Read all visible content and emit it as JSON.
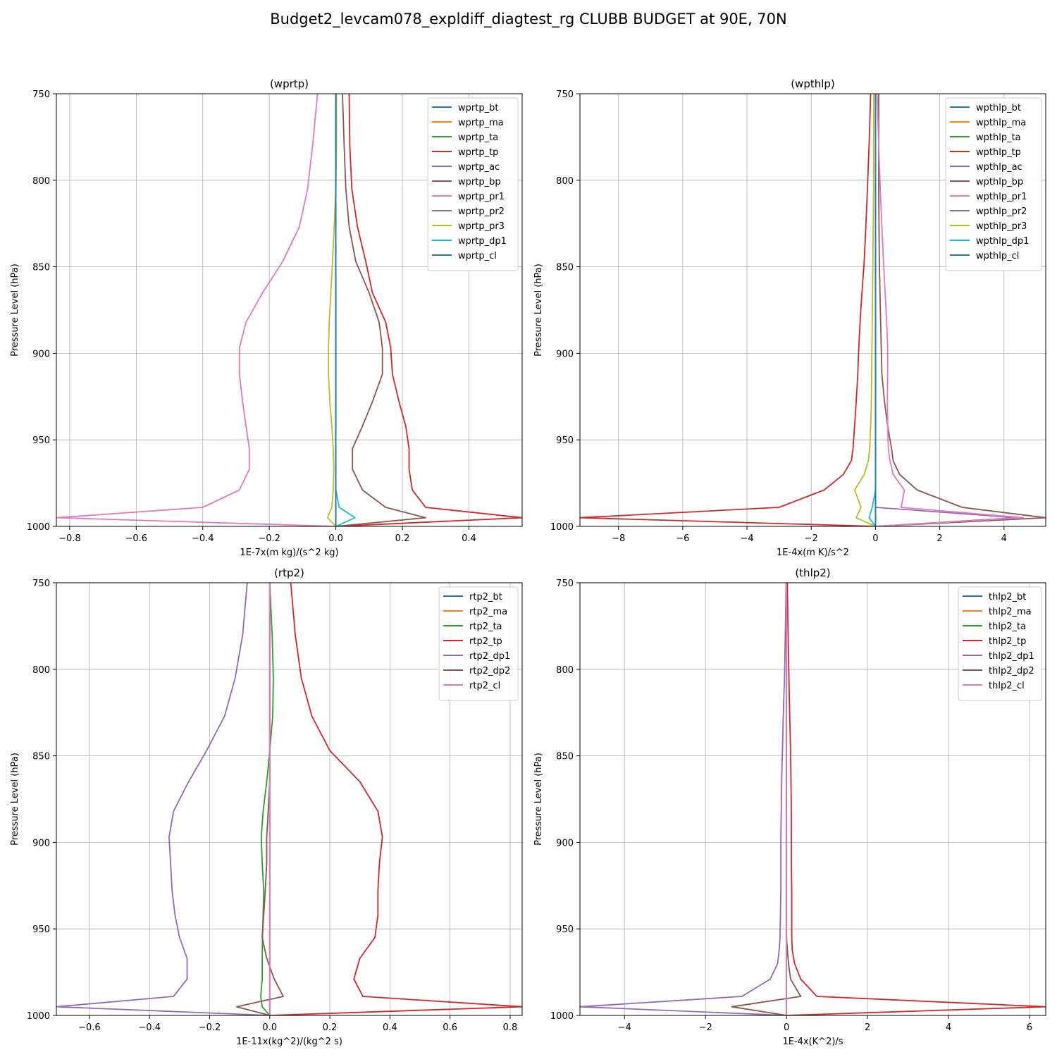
{
  "figure": {
    "title": "Budget2_levcam078_expldiff_diagtest_rg CLUBB BUDGET at 90E, 70N"
  },
  "chart_data": [
    {
      "type": "line",
      "title": "(wprtp)",
      "xlabel": "1E-7x(m kg)/(s^2 kg)",
      "ylabel": "Pressure Level (hPa)",
      "xlim": [
        -0.84,
        0.56
      ],
      "ylim": [
        1000,
        750
      ],
      "xticks": [
        "-0.8",
        "-0.6",
        "-0.4",
        "-0.2",
        "0.0",
        "0.2",
        "0.4"
      ],
      "xtick_values": [
        -0.8,
        -0.6,
        -0.4,
        -0.2,
        0.0,
        0.2,
        0.4
      ],
      "yticks": [
        "750",
        "800",
        "850",
        "900",
        "950",
        "1000"
      ],
      "ytick_values": [
        750,
        800,
        850,
        900,
        950,
        1000
      ],
      "grid": true,
      "legend_position": "top-right",
      "levels": [
        750,
        780,
        805,
        827,
        847,
        865,
        882,
        897,
        912,
        928,
        942,
        955,
        967,
        979,
        989,
        995,
        1000
      ],
      "series": [
        {
          "name": "wprtp_bt",
          "color": "#1f77b4",
          "values": [
            0,
            0,
            0,
            0,
            0,
            0,
            0,
            0,
            0,
            0,
            0,
            0,
            0,
            0,
            0,
            0,
            0
          ]
        },
        {
          "name": "wprtp_ma",
          "color": "#ff7f0e",
          "values": [
            0,
            0,
            0,
            0,
            0,
            0,
            0,
            0,
            0,
            0,
            0,
            0,
            0,
            0,
            0,
            0,
            0
          ]
        },
        {
          "name": "wprtp_ta",
          "color": "#2ca02c",
          "values": [
            0,
            0,
            0,
            0,
            0,
            0,
            0,
            0,
            0,
            0,
            0,
            0,
            0,
            0,
            0,
            0,
            0
          ]
        },
        {
          "name": "wprtp_tp",
          "color": "#d62728",
          "values": [
            0.04,
            0.042,
            0.048,
            0.065,
            0.09,
            0.11,
            0.15,
            0.165,
            0.17,
            0.19,
            0.21,
            0.22,
            0.22,
            0.23,
            0.27,
            0.56,
            0.0
          ]
        },
        {
          "name": "wprtp_ac",
          "color": "#9467bd",
          "values": [
            0,
            0,
            0,
            0,
            0,
            0,
            0,
            0,
            0,
            0,
            0,
            0,
            0,
            0,
            0,
            0,
            0
          ]
        },
        {
          "name": "wprtp_bp",
          "color": "#8c564b",
          "values": [
            0.02,
            0.025,
            0.03,
            0.04,
            0.06,
            0.1,
            0.13,
            0.14,
            0.14,
            0.11,
            0.08,
            0.05,
            0.05,
            0.08,
            0.15,
            0.27,
            0.0
          ]
        },
        {
          "name": "wprtp_pr1",
          "color": "#e377c2",
          "values": [
            -0.055,
            -0.07,
            -0.085,
            -0.11,
            -0.16,
            -0.22,
            -0.27,
            -0.29,
            -0.29,
            -0.28,
            -0.27,
            -0.26,
            -0.26,
            -0.29,
            -0.4,
            -0.84,
            0.0
          ]
        },
        {
          "name": "wprtp_pr2",
          "color": "#7f7f7f",
          "values": [
            0,
            0,
            0,
            0,
            0,
            0,
            0,
            0,
            0,
            0,
            0,
            0,
            0,
            0,
            0,
            0,
            0
          ]
        },
        {
          "name": "wprtp_pr3",
          "color": "#bcbd22",
          "values": [
            0.002,
            0.002,
            0.0,
            -0.005,
            -0.01,
            -0.015,
            -0.02,
            -0.022,
            -0.022,
            -0.018,
            -0.012,
            -0.008,
            -0.006,
            -0.008,
            -0.012,
            -0.025,
            0.0
          ]
        },
        {
          "name": "wprtp_dp1",
          "color": "#17becf",
          "values": [
            0,
            0,
            0,
            0,
            0,
            0,
            0,
            0,
            0,
            0,
            0,
            0,
            0,
            0,
            0.01,
            0.058,
            0.0
          ]
        },
        {
          "name": "wprtp_cl",
          "color": "#1f77b4",
          "values": [
            0,
            0,
            0,
            0,
            0,
            0,
            0,
            0,
            0,
            0,
            0,
            0,
            0,
            0,
            0,
            0,
            0
          ]
        }
      ]
    },
    {
      "type": "line",
      "title": "(wpthlp)",
      "xlabel": "1E-4x(m K)/s^2",
      "ylabel": "Pressure Level (hPa)",
      "xlim": [
        -9.2,
        5.3
      ],
      "ylim": [
        1000,
        750
      ],
      "xticks": [
        "-8",
        "-6",
        "-4",
        "-2",
        "0",
        "2",
        "4"
      ],
      "xtick_values": [
        -8,
        -6,
        -4,
        -2,
        0,
        2,
        4
      ],
      "yticks": [
        "750",
        "800",
        "850",
        "900",
        "950",
        "1000"
      ],
      "ytick_values": [
        750,
        800,
        850,
        900,
        950,
        1000
      ],
      "grid": true,
      "legend_position": "top-right",
      "levels": [
        750,
        780,
        805,
        827,
        847,
        865,
        882,
        897,
        912,
        928,
        942,
        955,
        962,
        970,
        979,
        989,
        995,
        1000
      ],
      "series": [
        {
          "name": "wpthlp_bt",
          "color": "#1f77b4",
          "values": [
            0,
            0,
            0,
            0,
            0,
            0,
            0,
            0,
            0,
            0,
            0,
            0,
            0,
            0,
            0,
            0,
            0,
            0
          ]
        },
        {
          "name": "wpthlp_ma",
          "color": "#ff7f0e",
          "values": [
            0,
            0,
            0,
            0,
            0,
            0,
            0,
            0,
            0,
            0,
            0,
            0,
            0,
            0,
            0,
            0,
            0,
            0
          ]
        },
        {
          "name": "wpthlp_ta",
          "color": "#2ca02c",
          "values": [
            0,
            0,
            0,
            0,
            0,
            0,
            0,
            0,
            0,
            0,
            0,
            0,
            0,
            0,
            0,
            0,
            0,
            0
          ]
        },
        {
          "name": "wpthlp_tp",
          "color": "#d62728",
          "values": [
            -0.15,
            -0.2,
            -0.25,
            -0.3,
            -0.35,
            -0.42,
            -0.48,
            -0.52,
            -0.55,
            -0.6,
            -0.65,
            -0.7,
            -0.75,
            -1.0,
            -1.6,
            -3.0,
            -9.2,
            0.0
          ]
        },
        {
          "name": "wpthlp_ac",
          "color": "#9467bd",
          "values": [
            0,
            0,
            0,
            0,
            0,
            0,
            0,
            0,
            0,
            0,
            0,
            0,
            0,
            0,
            0,
            0,
            4.4,
            0.0
          ]
        },
        {
          "name": "wpthlp_bp",
          "color": "#8c564b",
          "values": [
            0.1,
            0.1,
            0.1,
            0.11,
            0.12,
            0.14,
            0.16,
            0.18,
            0.2,
            0.28,
            0.38,
            0.5,
            0.55,
            0.75,
            1.3,
            2.7,
            5.3,
            0.0
          ]
        },
        {
          "name": "wpthlp_pr1",
          "color": "#e377c2",
          "values": [
            0.05,
            0.1,
            0.15,
            0.2,
            0.25,
            0.3,
            0.35,
            0.38,
            0.38,
            0.37,
            0.38,
            0.4,
            0.45,
            0.55,
            0.9,
            0.8,
            4.6,
            0.0
          ]
        },
        {
          "name": "wpthlp_pr2",
          "color": "#7f7f7f",
          "values": [
            0,
            0,
            0,
            0,
            0,
            0,
            0,
            0,
            0,
            0,
            0,
            0,
            0,
            0,
            0,
            0,
            0,
            0
          ]
        },
        {
          "name": "wpthlp_pr3",
          "color": "#bcbd22",
          "values": [
            -0.05,
            -0.06,
            -0.06,
            -0.07,
            -0.08,
            -0.09,
            -0.1,
            -0.11,
            -0.12,
            -0.13,
            -0.15,
            -0.18,
            -0.22,
            -0.35,
            -0.65,
            -0.45,
            -0.6,
            0.0
          ]
        },
        {
          "name": "wpthlp_dp1",
          "color": "#17becf",
          "values": [
            0,
            0,
            0,
            0,
            0,
            0,
            0,
            0,
            0,
            0,
            0,
            0,
            0,
            0,
            0,
            -0.1,
            -0.2,
            0.0
          ]
        },
        {
          "name": "wpthlp_cl",
          "color": "#1f77b4",
          "values": [
            0,
            0,
            0,
            0,
            0,
            0,
            0,
            0,
            0,
            0,
            0,
            0,
            0,
            0,
            0,
            0,
            0,
            0
          ]
        }
      ]
    },
    {
      "type": "line",
      "title": "(rtp2)",
      "xlabel": "1E-11x(kg^2)/(kg^2 s)",
      "ylabel": "Pressure Level (hPa)",
      "xlim": [
        -0.71,
        0.84
      ],
      "ylim": [
        1000,
        750
      ],
      "xticks": [
        "-0.6",
        "-0.4",
        "-0.2",
        "0.0",
        "0.2",
        "0.4",
        "0.6",
        "0.8"
      ],
      "xtick_values": [
        -0.6,
        -0.4,
        -0.2,
        0.0,
        0.2,
        0.4,
        0.6,
        0.8
      ],
      "yticks": [
        "750",
        "800",
        "850",
        "900",
        "950",
        "1000"
      ],
      "ytick_values": [
        750,
        800,
        850,
        900,
        950,
        1000
      ],
      "grid": true,
      "legend_position": "top-right",
      "levels": [
        750,
        780,
        805,
        827,
        847,
        865,
        882,
        897,
        912,
        928,
        942,
        955,
        967,
        979,
        989,
        995,
        1000
      ],
      "series": [
        {
          "name": "rtp2_bt",
          "color": "#1f77b4",
          "values": [
            0,
            0,
            0,
            0,
            0,
            0,
            0,
            0,
            0,
            0,
            0,
            0,
            0,
            0,
            0,
            0,
            0
          ]
        },
        {
          "name": "rtp2_ma",
          "color": "#ff7f0e",
          "values": [
            0,
            0,
            0,
            0,
            0,
            0,
            0,
            0,
            0,
            0,
            0,
            0,
            0,
            0,
            0,
            0,
            0
          ]
        },
        {
          "name": "rtp2_ta",
          "color": "#2ca02c",
          "values": [
            0.0,
            0.008,
            0.012,
            0.01,
            0.0,
            -0.01,
            -0.022,
            -0.028,
            -0.025,
            -0.02,
            -0.022,
            -0.024,
            -0.025,
            -0.025,
            -0.03,
            -0.025,
            0.0
          ]
        },
        {
          "name": "rtp2_tp",
          "color": "#d62728",
          "values": [
            0.07,
            0.085,
            0.105,
            0.14,
            0.2,
            0.3,
            0.36,
            0.375,
            0.365,
            0.36,
            0.36,
            0.35,
            0.3,
            0.28,
            0.31,
            0.84,
            0.0
          ]
        },
        {
          "name": "rtp2_dp1",
          "color": "#9467bd",
          "values": [
            -0.075,
            -0.09,
            -0.115,
            -0.15,
            -0.21,
            -0.27,
            -0.32,
            -0.335,
            -0.33,
            -0.325,
            -0.315,
            -0.3,
            -0.275,
            -0.275,
            -0.32,
            -0.71,
            0.0
          ]
        },
        {
          "name": "rtp2_dp2",
          "color": "#8c564b",
          "values": [
            0,
            0,
            0,
            0,
            0,
            0,
            -0.005,
            -0.01,
            -0.01,
            -0.015,
            -0.02,
            -0.025,
            -0.01,
            0.015,
            0.045,
            -0.11,
            0.0
          ]
        },
        {
          "name": "rtp2_cl",
          "color": "#e377c2",
          "values": [
            0,
            0,
            0,
            0,
            0,
            0,
            0,
            0,
            0,
            0,
            0,
            0,
            0,
            0,
            0,
            0,
            0
          ]
        }
      ]
    },
    {
      "type": "line",
      "title": "(thlp2)",
      "xlabel": "1E-4x(K^2)/s",
      "ylabel": "Pressure Level (hPa)",
      "xlim": [
        -5.1,
        6.4
      ],
      "ylim": [
        1000,
        750
      ],
      "xticks": [
        "-4",
        "-2",
        "0",
        "2",
        "4",
        "6"
      ],
      "xtick_values": [
        -4,
        -2,
        0,
        2,
        4,
        6
      ],
      "yticks": [
        "750",
        "800",
        "850",
        "900",
        "950",
        "1000"
      ],
      "ytick_values": [
        750,
        800,
        850,
        900,
        950,
        1000
      ],
      "grid": true,
      "legend_position": "top-right",
      "levels": [
        750,
        780,
        805,
        827,
        847,
        865,
        882,
        897,
        912,
        928,
        942,
        955,
        962,
        970,
        979,
        989,
        995,
        1000
      ],
      "series": [
        {
          "name": "thlp2_bt",
          "color": "#1f77b4",
          "values": [
            0,
            0,
            0,
            0,
            0,
            0,
            0,
            0,
            0,
            0,
            0,
            0,
            0,
            0,
            0,
            0,
            0,
            0
          ]
        },
        {
          "name": "thlp2_ma",
          "color": "#ff7f0e",
          "values": [
            0,
            0,
            0,
            0,
            0,
            0,
            0,
            0,
            0,
            0,
            0,
            0,
            0,
            0,
            0,
            0,
            0,
            0
          ]
        },
        {
          "name": "thlp2_ta",
          "color": "#2ca02c",
          "values": [
            0,
            0,
            0,
            0,
            0,
            0,
            0,
            0,
            0,
            0,
            0,
            0,
            0,
            0,
            0,
            0,
            0,
            0
          ]
        },
        {
          "name": "thlp2_tp",
          "color": "#d62728",
          "values": [
            0.02,
            0.04,
            0.06,
            0.08,
            0.1,
            0.11,
            0.12,
            0.12,
            0.12,
            0.13,
            0.13,
            0.13,
            0.14,
            0.2,
            0.35,
            0.75,
            6.4,
            0.0
          ]
        },
        {
          "name": "thlp2_dp1",
          "color": "#9467bd",
          "values": [
            -0.01,
            -0.03,
            -0.05,
            -0.08,
            -0.1,
            -0.12,
            -0.13,
            -0.14,
            -0.14,
            -0.14,
            -0.15,
            -0.16,
            -0.18,
            -0.22,
            -0.4,
            -1.1,
            -5.1,
            0.0
          ]
        },
        {
          "name": "thlp2_dp2",
          "color": "#8c564b",
          "values": [
            0,
            0,
            0,
            0,
            0,
            0,
            0,
            0,
            0,
            0,
            0,
            0,
            0.02,
            0.05,
            0.1,
            0.35,
            -1.35,
            0.0
          ]
        },
        {
          "name": "thlp2_cl",
          "color": "#e377c2",
          "values": [
            0,
            0,
            0,
            0,
            0,
            0,
            0,
            0,
            0,
            0,
            0,
            0,
            0,
            0,
            0,
            0,
            0,
            0
          ]
        }
      ]
    }
  ]
}
